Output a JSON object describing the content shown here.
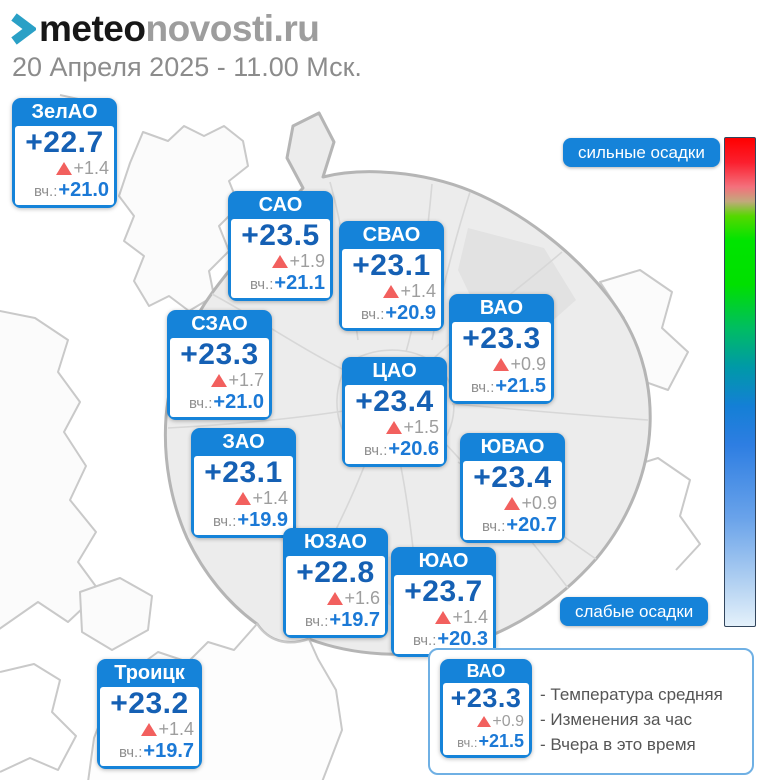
{
  "header": {
    "logo_prefix": "meteo",
    "logo_suffix": "novosti.ru",
    "datetime": "20 Апреля 2025 - 11.00 Мск."
  },
  "labels": {
    "yesterday_prefix": "вч.:"
  },
  "scale": {
    "top_label": "сильные осадки",
    "bottom_label": "слабые осадки",
    "gradient_top_to_bottom": [
      "#ff0000",
      "#f4707c",
      "#00e400",
      "#0099a8",
      "#147fd6",
      "#6aa3ea",
      "#e4f1fb"
    ]
  },
  "cards": [
    {
      "name": "ЗелАО",
      "temp": "+22.7",
      "change": "+1.4",
      "yesterday": "+21.0"
    },
    {
      "name": "САО",
      "temp": "+23.5",
      "change": "+1.9",
      "yesterday": "+21.1"
    },
    {
      "name": "СВАО",
      "temp": "+23.1",
      "change": "+1.4",
      "yesterday": "+20.9"
    },
    {
      "name": "ВАО",
      "temp": "+23.3",
      "change": "+0.9",
      "yesterday": "+21.5"
    },
    {
      "name": "СЗАО",
      "temp": "+23.3",
      "change": "+1.7",
      "yesterday": "+21.0"
    },
    {
      "name": "ЦАО",
      "temp": "+23.4",
      "change": "+1.5",
      "yesterday": "+20.6"
    },
    {
      "name": "ЗАО",
      "temp": "+23.1",
      "change": "+1.4",
      "yesterday": "+19.9"
    },
    {
      "name": "ЮВАО",
      "temp": "+23.4",
      "change": "+0.9",
      "yesterday": "+20.7"
    },
    {
      "name": "ЮЗАО",
      "temp": "+22.8",
      "change": "+1.6",
      "yesterday": "+19.7"
    },
    {
      "name": "ЮАО",
      "temp": "+23.7",
      "change": "+1.4",
      "yesterday": "+20.3"
    },
    {
      "name": "Троицк",
      "temp": "+23.2",
      "change": "+1.4",
      "yesterday": "+19.7"
    }
  ],
  "legend": {
    "sample": {
      "name": "ВАО",
      "temp": "+23.3",
      "change": "+0.9",
      "yesterday": "+21.5"
    },
    "lines": [
      "- Температура средняя",
      "- Изменения за час",
      "- Вчера в это время"
    ]
  },
  "colors": {
    "accent_blue": "#1583d9",
    "temp_blue": "#1560b4",
    "yesterday_blue": "#1b79d6",
    "rise_triangle": "#f2605e",
    "muted_gray_text": "#9e9e9e",
    "map_fill": "#ececec",
    "map_border": "#b5b5b5"
  }
}
